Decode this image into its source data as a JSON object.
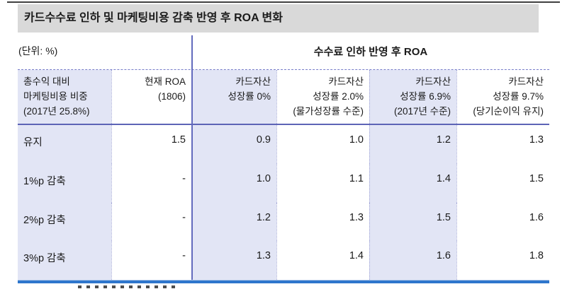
{
  "chart_data": {
    "type": "table",
    "title": "카드수수료 인하 및 마케팅비용 감축 반영 후 ROA 변화",
    "unit_label": "(단위: %)",
    "group_header": "수수료 인하 반영 후 ROA",
    "columns": [
      {
        "lines": [
          "총수익 대비",
          "마케팅비용 비중",
          "(2017년 25.8%)"
        ]
      },
      {
        "lines": [
          "현재 ROA",
          "(1806)"
        ]
      },
      {
        "lines": [
          "카드자산",
          "성장률 0%"
        ]
      },
      {
        "lines": [
          "카드자산",
          "성장률 2.0%",
          "(물가성장률 수준)"
        ]
      },
      {
        "lines": [
          "카드자산",
          "성장률 6.9%",
          "(2017년 수준)"
        ]
      },
      {
        "lines": [
          "카드자산",
          "성장률 9.7%",
          "(당기순이익 유지)"
        ]
      }
    ],
    "rows": [
      {
        "label": "유지",
        "values": [
          "1.5",
          "0.9",
          "1.0",
          "1.2",
          "1.3"
        ]
      },
      {
        "label": "1%p 감축",
        "values": [
          "-",
          "1.0",
          "1.1",
          "1.4",
          "1.5"
        ]
      },
      {
        "label": "2%p 감축",
        "values": [
          "-",
          "1.2",
          "1.3",
          "1.5",
          "1.6"
        ]
      },
      {
        "label": "3%p 감축",
        "values": [
          "-",
          "1.3",
          "1.4",
          "1.6",
          "1.8"
        ]
      }
    ],
    "layout_hints": {
      "band_columns_lavender": [
        1,
        3,
        5
      ],
      "group_header_spans_columns": [
        3,
        4,
        5,
        6
      ]
    },
    "colors": {
      "title_bg": "#d9d9d9",
      "band_lavender": "#e2e5f5",
      "rule_indigo": "#5d64b6",
      "divider_indigo": "#636bbd",
      "bottom_rule_blue": "#2e76cc",
      "top_rule_dark": "#3f3f3f"
    }
  }
}
